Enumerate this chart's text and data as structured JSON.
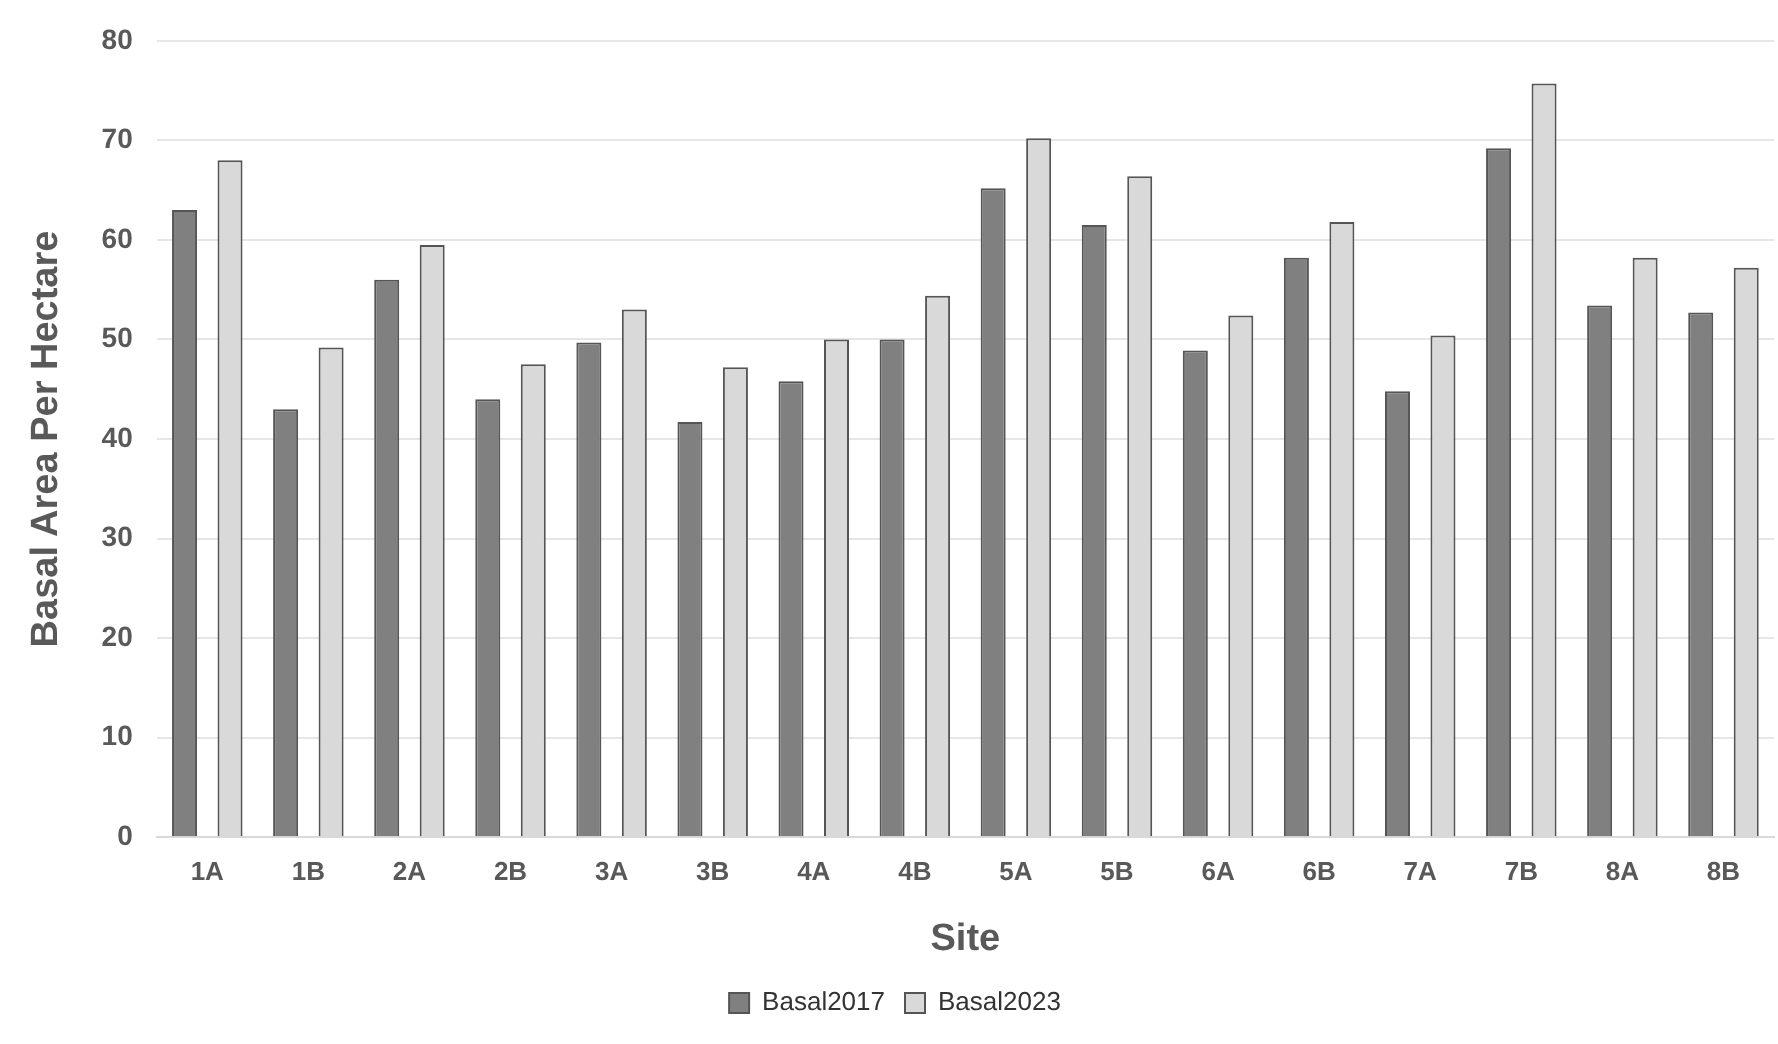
{
  "chart_data": {
    "type": "bar",
    "xlabel": "Site",
    "ylabel": "Basal Area Per Hectare",
    "categories": [
      "1A",
      "1B",
      "2A",
      "2B",
      "3A",
      "3B",
      "4A",
      "4B",
      "5A",
      "5B",
      "6A",
      "6B",
      "7A",
      "7B",
      "8A",
      "8B"
    ],
    "series": [
      {
        "name": "Basal2017",
        "color": "#808080",
        "values": [
          63,
          43,
          56,
          44,
          49.7,
          41.7,
          45.8,
          50,
          65.2,
          61.5,
          48.9,
          58.2,
          44.8,
          69.2,
          53.4,
          52.7
        ]
      },
      {
        "name": "Basal2023",
        "color": "#d9d9d9",
        "values": [
          68,
          49.2,
          59.5,
          47.5,
          53,
          47.2,
          50,
          54.4,
          70.2,
          66.4,
          52.4,
          61.8,
          50.4,
          75.7,
          58.2,
          57.2
        ]
      }
    ],
    "ylim": [
      0,
      80
    ],
    "yticks": [
      0,
      10,
      20,
      30,
      40,
      50,
      60,
      70,
      80
    ],
    "grid": "y",
    "legend": "bottom"
  }
}
